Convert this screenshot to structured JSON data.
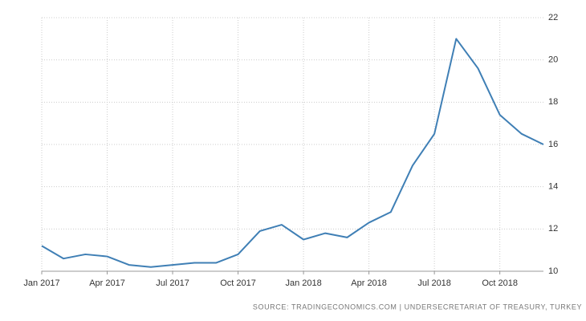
{
  "chart_data": {
    "type": "line",
    "x": [
      "2017-01",
      "2017-02",
      "2017-03",
      "2017-04",
      "2017-05",
      "2017-06",
      "2017-07",
      "2017-08",
      "2017-09",
      "2017-10",
      "2017-11",
      "2017-12",
      "2018-01",
      "2018-02",
      "2018-03",
      "2018-04",
      "2018-05",
      "2018-06",
      "2018-07",
      "2018-08",
      "2018-09",
      "2018-10",
      "2018-11",
      "2018-12"
    ],
    "series": [
      {
        "color": "#3f7fb5",
        "values": [
          11.2,
          10.6,
          10.8,
          10.7,
          10.3,
          10.2,
          10.3,
          10.4,
          10.4,
          10.8,
          11.9,
          12.2,
          11.5,
          11.8,
          11.6,
          12.3,
          12.8,
          15.0,
          16.5,
          21.0,
          19.6,
          17.4,
          16.5,
          16.0
        ]
      }
    ],
    "xlim": [
      "2017-01",
      "2018-12"
    ],
    "xticks": [
      {
        "value": "2017-01",
        "label": "Jan 2017"
      },
      {
        "value": "2017-04",
        "label": "Apr 2017"
      },
      {
        "value": "2017-07",
        "label": "Jul 2017"
      },
      {
        "value": "2017-10",
        "label": "Oct 2017"
      },
      {
        "value": "2018-01",
        "label": "Jan 2018"
      },
      {
        "value": "2018-04",
        "label": "Apr 2018"
      },
      {
        "value": "2018-07",
        "label": "Jul 2018"
      },
      {
        "value": "2018-10",
        "label": "Oct 2018"
      }
    ],
    "ylim": [
      10,
      22
    ],
    "yticks": [
      10,
      12,
      14,
      16,
      18,
      20,
      22
    ],
    "grid": true,
    "source": "SOURCE: TRADINGECONOMICS.COM  |  UNDERSECRETARIAT OF TREASURY, TURKEY"
  }
}
